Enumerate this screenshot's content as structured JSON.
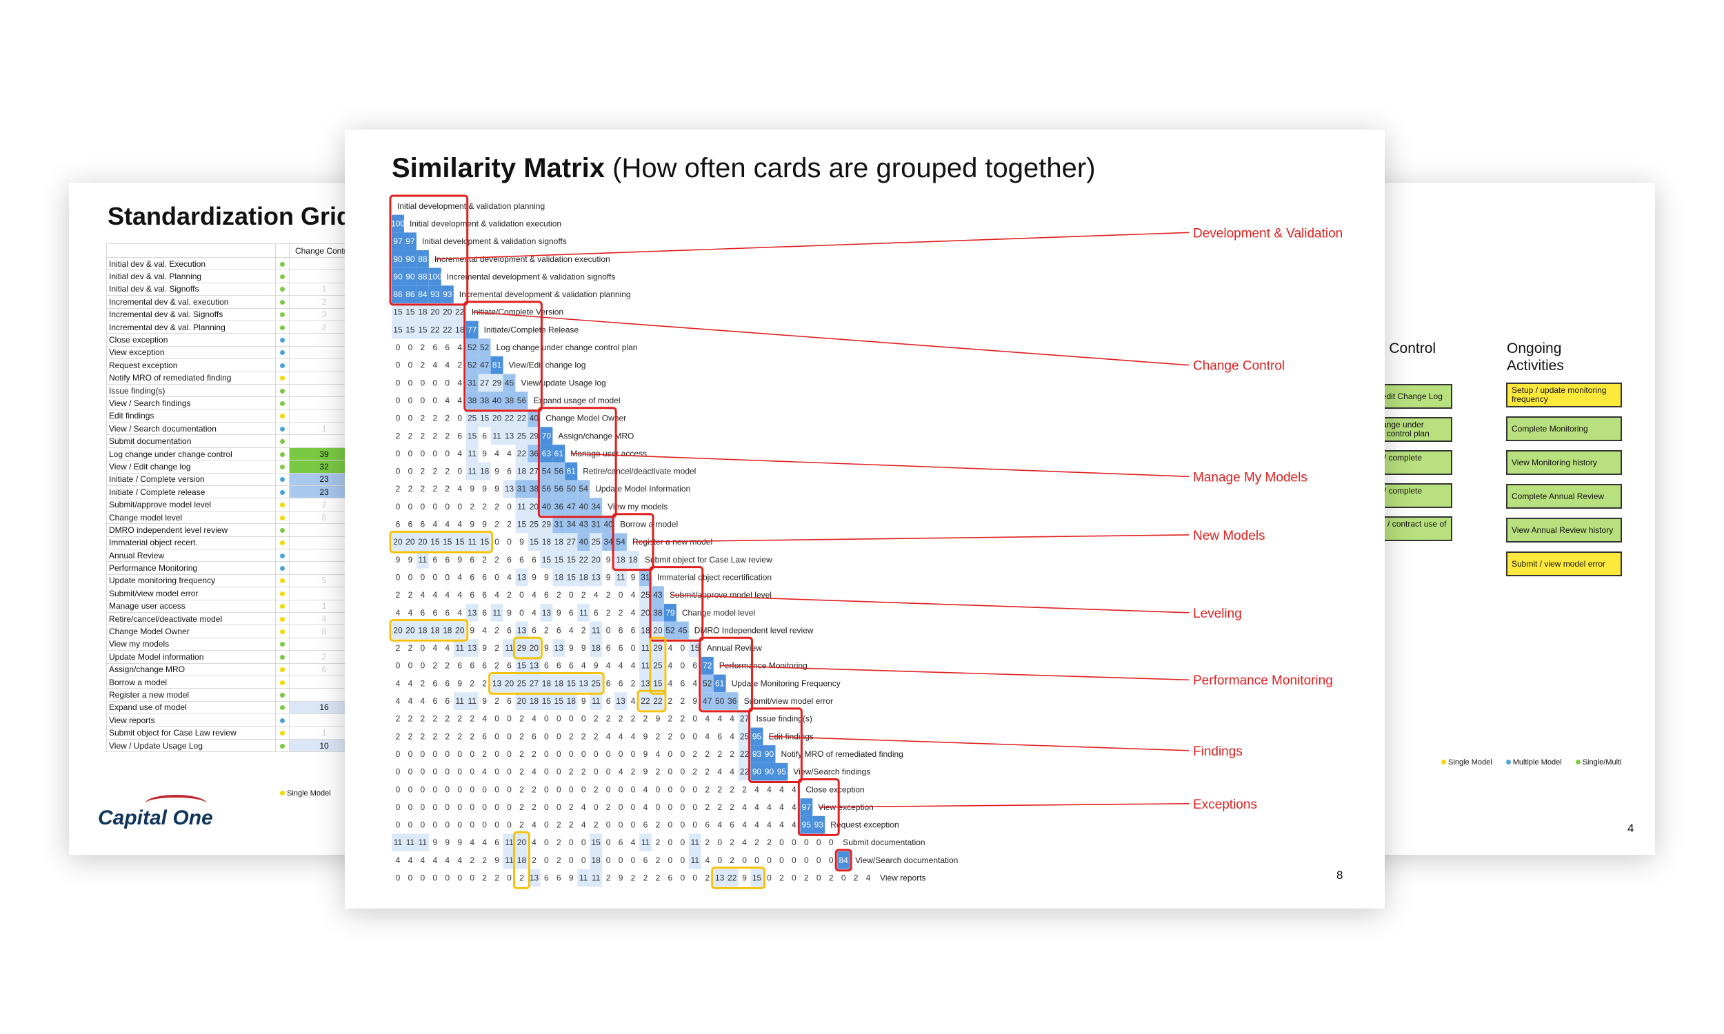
{
  "left_slide": {
    "title": "Standardization Grid",
    "column_header": "Change Control",
    "rows": [
      {
        "label": "Initial dev & val. Execution",
        "dot": "#7ac943",
        "value": ""
      },
      {
        "label": "Initial dev & val. Planning",
        "dot": "#7ac943",
        "value": ""
      },
      {
        "label": "Initial dev & val. Signoffs",
        "dot": "#7ac943",
        "value": "1"
      },
      {
        "label": "Incremental dev & val. execution",
        "dot": "#7ac943",
        "value": "2"
      },
      {
        "label": "Incremental dev & val. Signoffs",
        "dot": "#7ac943",
        "value": "3"
      },
      {
        "label": "Incremental dev & val. Planning",
        "dot": "#7ac943",
        "value": "2"
      },
      {
        "label": "Close exception",
        "dot": "#4aa3df",
        "value": ""
      },
      {
        "label": "View exception",
        "dot": "#4aa3df",
        "value": ""
      },
      {
        "label": "Request exception",
        "dot": "#4aa3df",
        "value": ""
      },
      {
        "label": "Notify MRO of remediated finding",
        "dot": "#f5d800",
        "value": ""
      },
      {
        "label": "Issue finding(s)",
        "dot": "#7ac943",
        "value": ""
      },
      {
        "label": "View / Search findings",
        "dot": "#7ac943",
        "value": ""
      },
      {
        "label": "Edit findings",
        "dot": "#f5d800",
        "value": ""
      },
      {
        "label": "View / Search documentation",
        "dot": "#4aa3df",
        "value": "1"
      },
      {
        "label": "Submit documentation",
        "dot": "#7ac943",
        "value": ""
      },
      {
        "label": "Log change under change control",
        "dot": "#7ac943",
        "value": "39"
      },
      {
        "label": "View / Edit change log",
        "dot": "#7ac943",
        "value": "32"
      },
      {
        "label": "Initiate / Complete version",
        "dot": "#4aa3df",
        "value": "23"
      },
      {
        "label": "Initiate / Complete release",
        "dot": "#4aa3df",
        "value": "23"
      },
      {
        "label": "Submit/approve model level",
        "dot": "#f5d800",
        "value": "2"
      },
      {
        "label": "Change model level",
        "dot": "#f5d800",
        "value": "5"
      },
      {
        "label": "DMRO independent level review",
        "dot": "#7ac943",
        "value": ""
      },
      {
        "label": "Immaterial object recert.",
        "dot": "#f5d800",
        "value": ""
      },
      {
        "label": "Annual Review",
        "dot": "#4aa3df",
        "value": ""
      },
      {
        "label": "Performance Monitoring",
        "dot": "#4aa3df",
        "value": ""
      },
      {
        "label": "Update monitoring frequency",
        "dot": "#f5d800",
        "value": "5"
      },
      {
        "label": "Submit/view model error",
        "dot": "#f5d800",
        "value": ""
      },
      {
        "label": "Manage user access",
        "dot": "#f5d800",
        "value": "1"
      },
      {
        "label": "Retire/cancel/deactivate model",
        "dot": "#f5d800",
        "value": "4"
      },
      {
        "label": "Change Model Owner",
        "dot": "#f5d800",
        "value": "8"
      },
      {
        "label": "View my models",
        "dot": "#7ac943",
        "value": ""
      },
      {
        "label": "Update Model information",
        "dot": "#7ac943",
        "value": "2"
      },
      {
        "label": "Assign/change MRO",
        "dot": "#f5d800",
        "value": "6"
      },
      {
        "label": "Borrow a model",
        "dot": "#f5d800",
        "value": ""
      },
      {
        "label": "Register a new model",
        "dot": "#7ac943",
        "value": ""
      },
      {
        "label": "Expand use of model",
        "dot": "#7ac943",
        "value": "16"
      },
      {
        "label": "View reports",
        "dot": "#4aa3df",
        "value": ""
      },
      {
        "label": "Submit object for Case Law review",
        "dot": "#f5d800",
        "value": "1"
      },
      {
        "label": "View / Update Usage Log",
        "dot": "#7ac943",
        "value": "10"
      }
    ],
    "legend": "Single Model",
    "logo": "Capital One"
  },
  "right_slide": {
    "col1_header": "Change Control",
    "col2_header": "Ongoing Activities",
    "col1_cards": [
      "View / edit Change Log",
      "Log change under change control plan",
      "Initiate / complete release",
      "Initiate / complete version",
      "Expand / contract use of model"
    ],
    "col2_cards": [
      "Setup / update monitoring frequency",
      "Complete Monitoring",
      "View Monitoring history",
      "Complete Annual Review",
      "View Annual Review history",
      "Submit / view model error"
    ],
    "col2_colors": [
      "yellow",
      "green",
      "green",
      "green",
      "green",
      "yellow"
    ],
    "legend": [
      "Single Model",
      "Multiple Model",
      "Single/Multi"
    ],
    "page_number": "4"
  },
  "center_slide": {
    "title_bold": "Similarity Matrix",
    "title_rest": "(How often cards are grouped together)",
    "page_number": "8",
    "rows": [
      "Initial development & validation planning",
      "Initial development & validation execution",
      "Initial development & validation signoffs",
      "Incremental development & validation execution",
      "Incremental development & validation signoffs",
      "Incremental development & validation planning",
      "Initiate/Complete Version",
      "Initiate/Complete Release",
      "Log change under change control plan",
      "View/Edit change log",
      "View/update Usage log",
      "Expand usage of model",
      "Change Model Owner",
      "Assign/change MRO",
      "Manage user access",
      "Retire/cancel/deactivate model",
      "Update Model Information",
      "View my models",
      "Borrow a model",
      "Register a new model",
      "Submit object for Case Law review",
      "Immaterial object recertification",
      "Submit/approve model level",
      "Change model level",
      "DMRO Independent level review",
      "Annual Review",
      "Performance Monitoring",
      "Update Monitoring Frequency",
      "Submit/view model error",
      "Issue finding(s)",
      "Edit findings",
      "Notify MRO of remediated finding",
      "View/Search findings",
      "Close exception",
      "View exception",
      "Request exception",
      "Submit documentation",
      "View/Search documentation",
      "View reports"
    ],
    "matrix": [
      [],
      [
        "100"
      ],
      [
        "97",
        "97"
      ],
      [
        "90",
        "90",
        "88"
      ],
      [
        "90",
        "90",
        "88",
        "100"
      ],
      [
        "86",
        "86",
        "84",
        "93",
        "93"
      ],
      [
        "15",
        "15",
        "18",
        "20",
        "20",
        "22"
      ],
      [
        "15",
        "15",
        "15",
        "22",
        "22",
        "18",
        "77"
      ],
      [
        "0",
        "0",
        "2",
        "6",
        "6",
        "4",
        "52",
        "52"
      ],
      [
        "0",
        "0",
        "2",
        "4",
        "4",
        "2",
        "52",
        "47",
        "81"
      ],
      [
        "0",
        "0",
        "0",
        "0",
        "0",
        "4",
        "31",
        "27",
        "29",
        "45"
      ],
      [
        "0",
        "0",
        "0",
        "0",
        "4",
        "4",
        "38",
        "38",
        "40",
        "38",
        "56"
      ],
      [
        "0",
        "0",
        "2",
        "2",
        "2",
        "0",
        "25",
        "15",
        "20",
        "22",
        "22",
        "40"
      ],
      [
        "2",
        "2",
        "2",
        "2",
        "2",
        "6",
        "15",
        "6",
        "11",
        "13",
        "25",
        "29",
        "70"
      ],
      [
        "0",
        "0",
        "0",
        "0",
        "0",
        "4",
        "11",
        "9",
        "4",
        "4",
        "22",
        "36",
        "63",
        "61"
      ],
      [
        "0",
        "0",
        "2",
        "2",
        "2",
        "0",
        "11",
        "18",
        "9",
        "6",
        "18",
        "27",
        "54",
        "56",
        "61"
      ],
      [
        "2",
        "2",
        "2",
        "2",
        "2",
        "4",
        "9",
        "9",
        "9",
        "13",
        "31",
        "38",
        "56",
        "56",
        "50",
        "54"
      ],
      [
        "0",
        "0",
        "0",
        "0",
        "0",
        "0",
        "2",
        "2",
        "2",
        "0",
        "11",
        "20",
        "40",
        "36",
        "47",
        "40",
        "34"
      ],
      [
        "6",
        "6",
        "6",
        "4",
        "4",
        "4",
        "9",
        "9",
        "2",
        "2",
        "15",
        "25",
        "29",
        "31",
        "34",
        "43",
        "31",
        "40"
      ],
      [
        "20",
        "20",
        "20",
        "15",
        "15",
        "15",
        "11",
        "15",
        "0",
        "0",
        "9",
        "15",
        "18",
        "18",
        "27",
        "40",
        "25",
        "34",
        "54"
      ],
      [
        "9",
        "9",
        "11",
        "6",
        "6",
        "9",
        "6",
        "2",
        "2",
        "6",
        "6",
        "6",
        "15",
        "15",
        "15",
        "22",
        "20",
        "9",
        "18",
        "18"
      ],
      [
        "0",
        "0",
        "0",
        "0",
        "0",
        "4",
        "6",
        "6",
        "0",
        "4",
        "13",
        "9",
        "9",
        "18",
        "15",
        "18",
        "13",
        "9",
        "11",
        "9",
        "31"
      ],
      [
        "2",
        "2",
        "4",
        "4",
        "4",
        "4",
        "6",
        "6",
        "4",
        "2",
        "0",
        "4",
        "6",
        "2",
        "0",
        "2",
        "4",
        "2",
        "0",
        "4",
        "25",
        "43"
      ],
      [
        "4",
        "4",
        "6",
        "6",
        "6",
        "4",
        "13",
        "6",
        "11",
        "9",
        "0",
        "4",
        "13",
        "9",
        "6",
        "11",
        "6",
        "2",
        "2",
        "4",
        "20",
        "38",
        "79"
      ],
      [
        "20",
        "20",
        "18",
        "18",
        "18",
        "20",
        "9",
        "4",
        "2",
        "6",
        "13",
        "6",
        "2",
        "6",
        "4",
        "2",
        "11",
        "0",
        "6",
        "6",
        "18",
        "20",
        "52",
        "45"
      ],
      [
        "2",
        "2",
        "0",
        "4",
        "4",
        "11",
        "13",
        "9",
        "2",
        "11",
        "29",
        "20",
        "9",
        "13",
        "9",
        "9",
        "18",
        "6",
        "6",
        "0",
        "11",
        "29",
        "4",
        "0",
        "15"
      ],
      [
        "0",
        "0",
        "0",
        "2",
        "2",
        "6",
        "6",
        "6",
        "2",
        "6",
        "15",
        "13",
        "6",
        "6",
        "6",
        "4",
        "9",
        "4",
        "4",
        "4",
        "11",
        "25",
        "4",
        "0",
        "6",
        "72"
      ],
      [
        "4",
        "4",
        "2",
        "6",
        "6",
        "9",
        "2",
        "2",
        "13",
        "20",
        "25",
        "27",
        "18",
        "18",
        "15",
        "13",
        "25",
        "6",
        "6",
        "2",
        "13",
        "15",
        "4",
        "6",
        "4",
        "52",
        "61"
      ],
      [
        "4",
        "4",
        "4",
        "6",
        "6",
        "11",
        "11",
        "9",
        "2",
        "6",
        "20",
        "18",
        "15",
        "15",
        "18",
        "9",
        "11",
        "6",
        "13",
        "4",
        "22",
        "22",
        "2",
        "2",
        "9",
        "47",
        "50",
        "36"
      ],
      [
        "2",
        "2",
        "2",
        "2",
        "2",
        "2",
        "2",
        "4",
        "0",
        "0",
        "2",
        "4",
        "0",
        "0",
        "0",
        "0",
        "2",
        "2",
        "2",
        "2",
        "2",
        "9",
        "2",
        "2",
        "0",
        "4",
        "4",
        "4",
        "27"
      ],
      [
        "2",
        "2",
        "2",
        "2",
        "2",
        "2",
        "2",
        "6",
        "0",
        "0",
        "2",
        "6",
        "0",
        "0",
        "2",
        "2",
        "2",
        "4",
        "4",
        "4",
        "9",
        "2",
        "2",
        "0",
        "0",
        "4",
        "6",
        "4",
        "25",
        "95"
      ],
      [
        "0",
        "0",
        "0",
        "0",
        "0",
        "0",
        "0",
        "2",
        "0",
        "0",
        "2",
        "2",
        "0",
        "0",
        "0",
        "0",
        "0",
        "0",
        "0",
        "0",
        "9",
        "4",
        "0",
        "0",
        "2",
        "2",
        "2",
        "2",
        "22",
        "93",
        "90"
      ],
      [
        "0",
        "0",
        "0",
        "0",
        "0",
        "0",
        "0",
        "4",
        "0",
        "0",
        "2",
        "4",
        "0",
        "0",
        "2",
        "2",
        "0",
        "0",
        "4",
        "2",
        "9",
        "2",
        "0",
        "0",
        "2",
        "2",
        "4",
        "4",
        "22",
        "90",
        "90",
        "95"
      ],
      [
        "0",
        "0",
        "0",
        "0",
        "0",
        "0",
        "0",
        "0",
        "0",
        "0",
        "2",
        "2",
        "0",
        "0",
        "0",
        "0",
        "2",
        "0",
        "0",
        "0",
        "4",
        "0",
        "0",
        "0",
        "0",
        "2",
        "2",
        "2",
        "2",
        "4",
        "4",
        "4",
        "4"
      ],
      [
        "0",
        "0",
        "0",
        "0",
        "0",
        "0",
        "0",
        "0",
        "0",
        "0",
        "2",
        "2",
        "0",
        "0",
        "2",
        "4",
        "0",
        "2",
        "0",
        "0",
        "4",
        "0",
        "0",
        "0",
        "0",
        "2",
        "2",
        "2",
        "4",
        "4",
        "4",
        "4",
        "4",
        "97"
      ],
      [
        "0",
        "0",
        "0",
        "0",
        "0",
        "0",
        "0",
        "0",
        "0",
        "0",
        "2",
        "4",
        "0",
        "2",
        "2",
        "4",
        "2",
        "0",
        "0",
        "0",
        "6",
        "2",
        "0",
        "0",
        "0",
        "6",
        "4",
        "6",
        "4",
        "4",
        "4",
        "4",
        "4",
        "95",
        "93"
      ],
      [
        "11",
        "11",
        "11",
        "9",
        "9",
        "9",
        "4",
        "4",
        "6",
        "11",
        "20",
        "4",
        "0",
        "2",
        "0",
        "0",
        "15",
        "0",
        "6",
        "4",
        "11",
        "2",
        "0",
        "0",
        "11",
        "2",
        "0",
        "2",
        "4",
        "2",
        "2",
        "0",
        "0",
        "0",
        "0",
        "0"
      ],
      [
        "4",
        "4",
        "4",
        "4",
        "4",
        "4",
        "2",
        "2",
        "9",
        "11",
        "18",
        "2",
        "0",
        "2",
        "0",
        "0",
        "18",
        "0",
        "0",
        "0",
        "6",
        "2",
        "0",
        "0",
        "11",
        "4",
        "0",
        "2",
        "0",
        "0",
        "0",
        "0",
        "0",
        "0",
        "0",
        "0",
        "84"
      ],
      [
        "0",
        "0",
        "0",
        "0",
        "0",
        "0",
        "0",
        "2",
        "2",
        "0",
        "2",
        "13",
        "6",
        "6",
        "9",
        "11",
        "11",
        "2",
        "9",
        "2",
        "2",
        "2",
        "6",
        "0",
        "0",
        "2",
        "13",
        "22",
        "9",
        "15",
        "0",
        "2",
        "0",
        "2",
        "0",
        "2",
        "0",
        "2",
        "4"
      ]
    ],
    "categories": [
      "Development & Validation",
      "Change Control",
      "Manage My Models",
      "New Models",
      "Leveling",
      "Performance Monitoring",
      "Findings",
      "Exceptions"
    ]
  },
  "colors": {
    "cell_strong": "#4a8fdc",
    "cell_mid": "#9cc2ef",
    "cell_light": "#dbe9f9",
    "red": "#e01f1f",
    "yellow_box": "#f4c20d"
  }
}
